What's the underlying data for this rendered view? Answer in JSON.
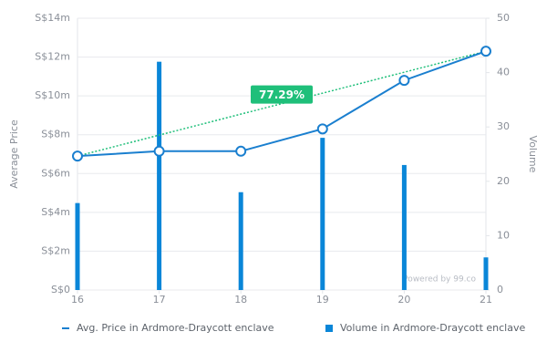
{
  "chart_data": {
    "type": "bar-line",
    "x": [
      16,
      17,
      18,
      19,
      20,
      21
    ],
    "xlim": [
      16,
      21
    ],
    "xticks": [
      16,
      17,
      18,
      19,
      20,
      21
    ],
    "ylabel": "Average Price",
    "y2label": "Volume",
    "ylim": [
      0,
      14000000
    ],
    "yticks": [
      {
        "value": 0,
        "label": "S$0"
      },
      {
        "value": 2000000,
        "label": "S$2m"
      },
      {
        "value": 4000000,
        "label": "S$4m"
      },
      {
        "value": 6000000,
        "label": "S$6m"
      },
      {
        "value": 8000000,
        "label": "S$8m"
      },
      {
        "value": 10000000,
        "label": "S$10m"
      },
      {
        "value": 12000000,
        "label": "S$12m"
      },
      {
        "value": 14000000,
        "label": "S$14m"
      }
    ],
    "y2lim": [
      0,
      50
    ],
    "y2ticks": [
      0,
      10,
      20,
      30,
      40,
      50
    ],
    "grid": true,
    "series": [
      {
        "name": "Avg. Price in Ardmore-Draycott enclave",
        "type": "line",
        "color": "#1a7fcf",
        "values": [
          6900000,
          7150000,
          7150000,
          8300000,
          10800000,
          12300000
        ]
      },
      {
        "name": "Volume in Ardmore-Draycott enclave",
        "type": "bar",
        "axis": "y2",
        "color": "#0a86d8",
        "values": [
          16,
          42,
          18,
          28,
          23,
          6
        ]
      }
    ],
    "annotation": {
      "text": "77.29%",
      "color": "#1fbf7a"
    },
    "credit": "Powered by 99.co"
  }
}
